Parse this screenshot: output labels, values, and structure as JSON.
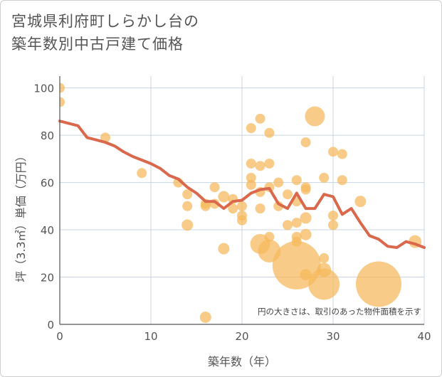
{
  "title": {
    "line1": "宮城県利府町しらかし台の",
    "line2": "築年数別中古戸建て価格"
  },
  "chart_data": {
    "type": "scatter",
    "xlabel": "築年数（年）",
    "ylabel": "坪（3.3㎡）単価（万円）",
    "xlim": [
      0,
      40
    ],
    "ylim": [
      0,
      105
    ],
    "xticks": [
      0,
      10,
      20,
      30,
      40
    ],
    "yticks": [
      0,
      20,
      40,
      60,
      80,
      100
    ],
    "grid": true,
    "note": "円の大きさは、取引のあった物件面積を示す",
    "colors": {
      "bubble": "#f5b95a",
      "line": "#d9684c",
      "grid": "#c8d4e0",
      "axis": "#555555"
    },
    "points": [
      {
        "x": 0,
        "y": 100,
        "r": 7
      },
      {
        "x": 0,
        "y": 94,
        "r": 7
      },
      {
        "x": 5,
        "y": 79,
        "r": 7
      },
      {
        "x": 9,
        "y": 64,
        "r": 7
      },
      {
        "x": 13,
        "y": 60,
        "r": 7
      },
      {
        "x": 14,
        "y": 55,
        "r": 7
      },
      {
        "x": 14,
        "y": 50,
        "r": 7
      },
      {
        "x": 14,
        "y": 42,
        "r": 8
      },
      {
        "x": 16,
        "y": 51,
        "r": 7
      },
      {
        "x": 16,
        "y": 50,
        "r": 7
      },
      {
        "x": 16,
        "y": 3,
        "r": 8
      },
      {
        "x": 17,
        "y": 58,
        "r": 7
      },
      {
        "x": 17,
        "y": 51,
        "r": 7
      },
      {
        "x": 18,
        "y": 54,
        "r": 8
      },
      {
        "x": 18,
        "y": 32,
        "r": 8
      },
      {
        "x": 19,
        "y": 53,
        "r": 7
      },
      {
        "x": 19,
        "y": 49,
        "r": 7
      },
      {
        "x": 20,
        "y": 50,
        "r": 7
      },
      {
        "x": 20,
        "y": 46,
        "r": 7
      },
      {
        "x": 20,
        "y": 44,
        "r": 7
      },
      {
        "x": 21,
        "y": 83,
        "r": 7
      },
      {
        "x": 21,
        "y": 68,
        "r": 7
      },
      {
        "x": 21,
        "y": 62,
        "r": 7
      },
      {
        "x": 21,
        "y": 59,
        "r": 7
      },
      {
        "x": 22,
        "y": 87,
        "r": 7
      },
      {
        "x": 22,
        "y": 67,
        "r": 7
      },
      {
        "x": 22,
        "y": 56,
        "r": 7
      },
      {
        "x": 22,
        "y": 49,
        "r": 7
      },
      {
        "x": 22,
        "y": 34,
        "r": 14
      },
      {
        "x": 23,
        "y": 81,
        "r": 7
      },
      {
        "x": 23,
        "y": 68,
        "r": 7
      },
      {
        "x": 23,
        "y": 58,
        "r": 7
      },
      {
        "x": 23,
        "y": 37,
        "r": 7
      },
      {
        "x": 23,
        "y": 31,
        "r": 16
      },
      {
        "x": 24,
        "y": 60,
        "r": 7
      },
      {
        "x": 24,
        "y": 50,
        "r": 7
      },
      {
        "x": 25,
        "y": 55,
        "r": 7
      },
      {
        "x": 25,
        "y": 42,
        "r": 7
      },
      {
        "x": 26,
        "y": 61,
        "r": 7
      },
      {
        "x": 26,
        "y": 52,
        "r": 7
      },
      {
        "x": 26,
        "y": 43,
        "r": 7
      },
      {
        "x": 26,
        "y": 37,
        "r": 7
      },
      {
        "x": 26,
        "y": 35,
        "r": 7
      },
      {
        "x": 26,
        "y": 25,
        "r": 34
      },
      {
        "x": 27,
        "y": 77,
        "r": 7
      },
      {
        "x": 27,
        "y": 58,
        "r": 7
      },
      {
        "x": 27,
        "y": 57,
        "r": 7
      },
      {
        "x": 27,
        "y": 45,
        "r": 8
      },
      {
        "x": 27,
        "y": 38,
        "r": 8
      },
      {
        "x": 27,
        "y": 21,
        "r": 8
      },
      {
        "x": 28,
        "y": 88,
        "r": 14
      },
      {
        "x": 29,
        "y": 62,
        "r": 7
      },
      {
        "x": 29,
        "y": 28,
        "r": 7
      },
      {
        "x": 29,
        "y": 23,
        "r": 10
      },
      {
        "x": 29,
        "y": 17,
        "r": 22
      },
      {
        "x": 30,
        "y": 73,
        "r": 7
      },
      {
        "x": 30,
        "y": 46,
        "r": 7
      },
      {
        "x": 30,
        "y": 42,
        "r": 7
      },
      {
        "x": 31,
        "y": 72,
        "r": 7
      },
      {
        "x": 31,
        "y": 61,
        "r": 7
      },
      {
        "x": 33,
        "y": 52,
        "r": 8
      },
      {
        "x": 35,
        "y": 17,
        "r": 32
      },
      {
        "x": 39,
        "y": 35,
        "r": 9
      }
    ],
    "trend": {
      "x": [
        0,
        2,
        3,
        4,
        5,
        6,
        7,
        8,
        9,
        10,
        11,
        12,
        13,
        14,
        15,
        16,
        17,
        18,
        19,
        20,
        21,
        22,
        23,
        24,
        25,
        26,
        27,
        28,
        29,
        30,
        31,
        32,
        33,
        34,
        35,
        36,
        37,
        38,
        39,
        40
      ],
      "y": [
        86,
        84,
        79,
        78,
        77,
        75.5,
        73,
        71,
        69.5,
        68,
        66,
        63,
        61.5,
        58,
        55.5,
        52,
        52,
        49,
        52,
        52.5,
        55.5,
        57,
        57.5,
        51,
        49,
        55.5,
        49,
        49,
        55,
        54,
        46.5,
        49,
        43,
        37.5,
        36,
        33,
        32.5,
        35,
        34,
        32.5
      ]
    }
  }
}
